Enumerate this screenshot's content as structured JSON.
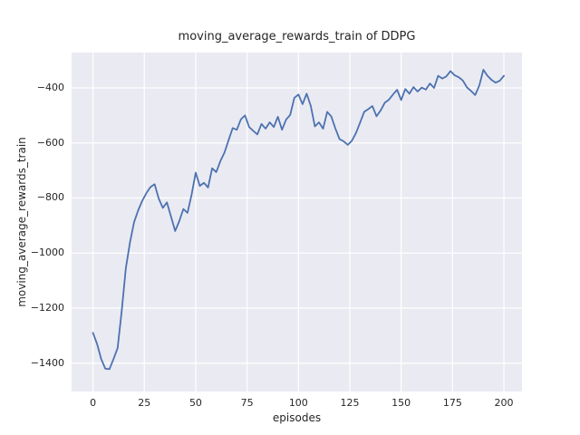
{
  "title": "moving_average_rewards_train of DDPG",
  "chart_data": {
    "type": "line",
    "title": "moving_average_rewards_train of DDPG",
    "xlabel": "episodes",
    "ylabel": "moving_average_rewards_train",
    "style": "seaborn-darkgrid",
    "grid": true,
    "legend": false,
    "plot_bg_color": "#eaeaf2",
    "grid_color": "#ffffff",
    "text_color": "#262626",
    "xlim": [
      -10.4,
      208.8
    ],
    "ylim": [
      -1503,
      -271.6
    ],
    "xticks": [
      0,
      25,
      50,
      75,
      100,
      125,
      150,
      175,
      200
    ],
    "xtick_labels": [
      "0",
      "25",
      "50",
      "75",
      "100",
      "125",
      "150",
      "175",
      "200"
    ],
    "yticks": [
      -400,
      -600,
      -800,
      -1000,
      -1200,
      -1400
    ],
    "ytick_labels": [
      "−400",
      "−600",
      "−800",
      "−1000",
      "−1200",
      "−1400"
    ],
    "x": [
      0,
      2,
      4,
      6,
      8,
      10,
      12,
      14,
      16,
      18,
      20,
      22,
      24,
      26,
      28,
      30,
      32,
      34,
      36,
      38,
      40,
      42,
      44,
      46,
      48,
      50,
      52,
      54,
      56,
      58,
      60,
      62,
      64,
      66,
      68,
      70,
      72,
      74,
      76,
      78,
      80,
      82,
      84,
      86,
      88,
      90,
      92,
      94,
      96,
      98,
      100,
      102,
      104,
      106,
      108,
      110,
      112,
      114,
      116,
      118,
      120,
      122,
      124,
      126,
      128,
      130,
      132,
      134,
      136,
      138,
      140,
      142,
      144,
      146,
      148,
      150,
      152,
      154,
      156,
      158,
      160,
      162,
      164,
      166,
      168,
      170,
      172,
      174,
      176,
      178,
      180,
      182,
      184,
      186,
      188,
      190,
      192,
      194,
      196,
      198,
      200
    ],
    "series": [
      {
        "name": "moving_average_rewards_train",
        "color": "#4c72b0",
        "line_width": 1.8,
        "values": [
          -1290,
          -1330,
          -1385,
          -1420,
          -1422,
          -1385,
          -1345,
          -1210,
          -1055,
          -962,
          -888,
          -845,
          -810,
          -782,
          -760,
          -750,
          -802,
          -836,
          -816,
          -868,
          -920,
          -884,
          -840,
          -854,
          -788,
          -708,
          -756,
          -745,
          -762,
          -692,
          -706,
          -666,
          -635,
          -590,
          -546,
          -552,
          -514,
          -500,
          -542,
          -556,
          -569,
          -531,
          -548,
          -525,
          -542,
          -505,
          -552,
          -515,
          -498,
          -436,
          -424,
          -459,
          -421,
          -465,
          -540,
          -525,
          -548,
          -487,
          -504,
          -548,
          -586,
          -594,
          -607,
          -592,
          -564,
          -526,
          -487,
          -477,
          -466,
          -503,
          -482,
          -454,
          -443,
          -424,
          -407,
          -444,
          -404,
          -421,
          -397,
          -413,
          -399,
          -406,
          -384,
          -400,
          -356,
          -366,
          -358,
          -339,
          -354,
          -361,
          -373,
          -398,
          -411,
          -426,
          -392,
          -334,
          -356,
          -371,
          -381,
          -374,
          -356
        ]
      }
    ]
  }
}
